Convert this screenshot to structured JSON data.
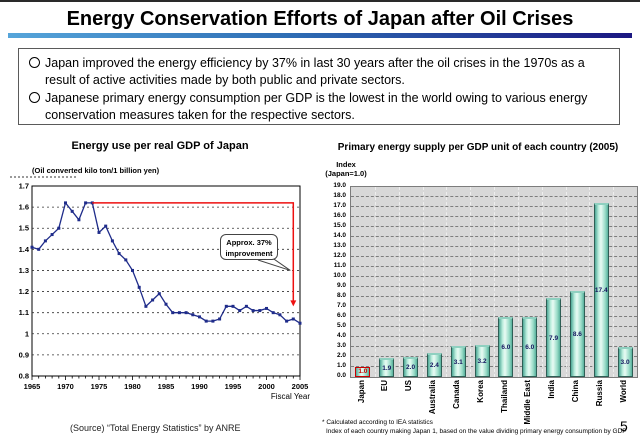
{
  "slide": {
    "title": "Energy Conservation Efforts of Japan after Oil Crises",
    "rule_colors": [
      "#56a5da",
      "#2e6db4",
      "#1b1781"
    ],
    "bullets": [
      "Japan improved the energy efficiency by 37% in last 30 years after the oil crises in the 1970s as a result of active activities made by both public and private sectors.",
      "Japanese primary energy consumption per GDP is the lowest in the world owing to various energy conservation measures taken for the respective sectors."
    ],
    "source": "(Source) “Total Energy Statistics” by ANRE",
    "page_number": "5"
  },
  "chart_data": [
    {
      "type": "line",
      "title": "Energy use per real GDP of Japan",
      "unit_label": "(Oil converted kilo ton/1 billion yen)",
      "xlabel": "Fiscal Year",
      "x_start": 1965,
      "x_end": 2005,
      "x_ticks": [
        "1965",
        "1970",
        "1975",
        "1980",
        "1985",
        "1990",
        "1995",
        "2000",
        "2005"
      ],
      "ylim": [
        0.8,
        1.7
      ],
      "y_ticks": [
        "1.7",
        "1.6",
        "1.5",
        "1.4",
        "1.3",
        "1.2",
        "1.1",
        "1",
        "0.9",
        "0.8"
      ],
      "grid": true,
      "line_color": "#1f2c8a",
      "ref_color": "#ee1111",
      "values": [
        1.41,
        1.4,
        1.44,
        1.47,
        1.5,
        1.62,
        1.58,
        1.54,
        1.62,
        1.62,
        1.48,
        1.51,
        1.44,
        1.38,
        1.35,
        1.3,
        1.22,
        1.13,
        1.16,
        1.19,
        1.14,
        1.1,
        1.1,
        1.1,
        1.09,
        1.08,
        1.06,
        1.06,
        1.07,
        1.13,
        1.13,
        1.11,
        1.13,
        1.11,
        1.11,
        1.12,
        1.1,
        1.09,
        1.06,
        1.07,
        1.05
      ],
      "annotation": {
        "text_line1": "Approx. 37%",
        "text_line2": "improvement",
        "ref_level": 1.62,
        "ref_start_year": 1974,
        "ref_end_year": 2004,
        "drop_to": 1.13
      }
    },
    {
      "type": "bar",
      "title": "Primary energy supply per GDP unit of each country (2005)",
      "index_label": [
        "Index",
        "(Japan=1.0)"
      ],
      "categories": [
        "Japan",
        "EU",
        "US",
        "Australia",
        "Canada",
        "Korea",
        "Thailand",
        "Middle East",
        "India",
        "China",
        "Russia",
        "World"
      ],
      "values": [
        1.0,
        1.9,
        2.0,
        2.4,
        3.1,
        3.2,
        6.0,
        6.0,
        7.9,
        8.6,
        17.4,
        3.0
      ],
      "value_labels": [
        "1.0",
        "1.9",
        "2.0",
        "2.4",
        "3.1",
        "3.2",
        "6.0",
        "6.0",
        "7.9",
        "8.6",
        "17.4",
        "3.0"
      ],
      "ylim": [
        0,
        19
      ],
      "y_tick_step": 1.0,
      "grid": true,
      "highlight_index": 0,
      "highlight_color": "#cc0000",
      "bar_color": "#9adcc8",
      "footnote1": "* Calculated according to IEA statistics",
      "footnote2": "Index of each country making Japan 1, based on the value dividing primary energy consumption by GDP"
    }
  ]
}
